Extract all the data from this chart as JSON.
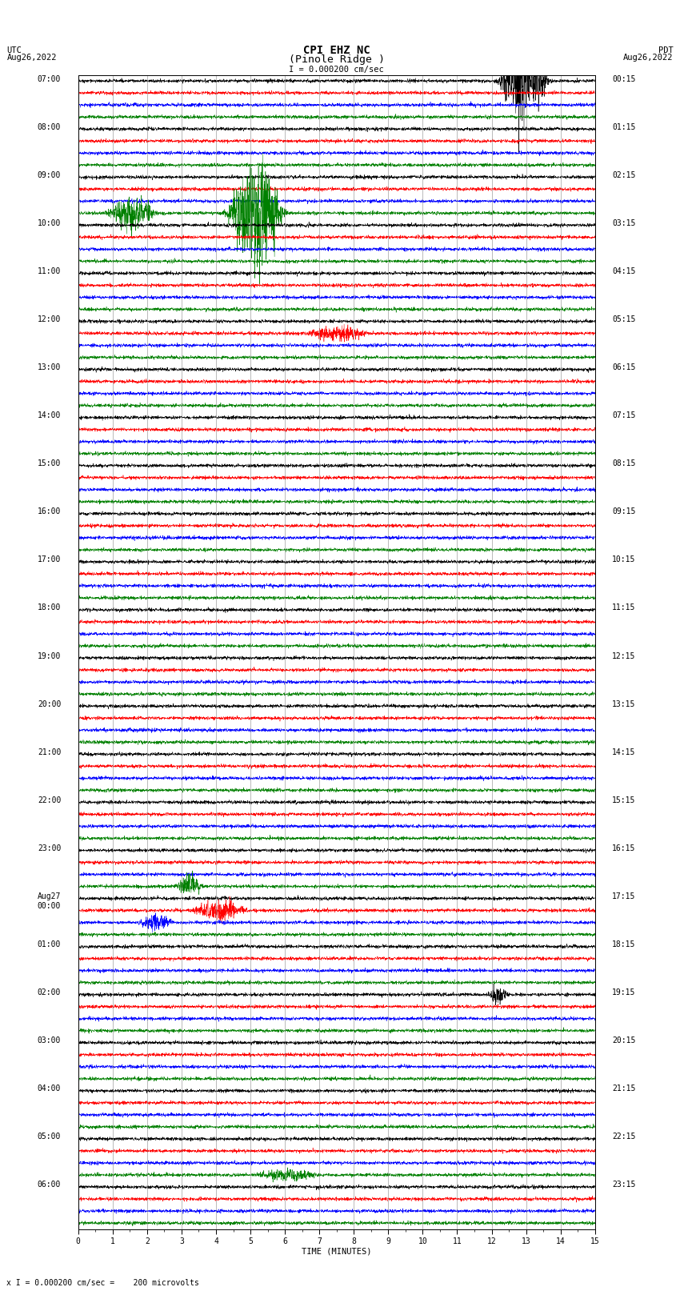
{
  "title_line1": "CPI EHZ NC",
  "title_line2": "(Pinole Ridge )",
  "scale_label": "I = 0.000200 cm/sec",
  "bottom_label": "x I = 0.000200 cm/sec =    200 microvolts",
  "xlabel": "TIME (MINUTES)",
  "left_date_line1": "UTC",
  "left_date_line2": "Aug26,2022",
  "right_date_line1": "PDT",
  "right_date_line2": "Aug26,2022",
  "left_times": [
    "07:00",
    "08:00",
    "09:00",
    "10:00",
    "11:00",
    "12:00",
    "13:00",
    "14:00",
    "15:00",
    "16:00",
    "17:00",
    "18:00",
    "19:00",
    "20:00",
    "21:00",
    "22:00",
    "23:00",
    "Aug27\n00:00",
    "01:00",
    "02:00",
    "03:00",
    "04:00",
    "05:00",
    "06:00"
  ],
  "right_times": [
    "00:15",
    "01:15",
    "02:15",
    "03:15",
    "04:15",
    "05:15",
    "06:15",
    "07:15",
    "08:15",
    "09:15",
    "10:15",
    "11:15",
    "12:15",
    "13:15",
    "14:15",
    "15:15",
    "16:15",
    "17:15",
    "18:15",
    "19:15",
    "20:15",
    "21:15",
    "22:15",
    "23:15"
  ],
  "n_time_blocks": 24,
  "traces_per_block": 4,
  "trace_colors": [
    "black",
    "red",
    "blue",
    "green"
  ],
  "bg_color": "white",
  "grid_color": "#888888",
  "minutes": 15,
  "base_amp": 0.12,
  "noise_seed": 42,
  "fig_width": 8.5,
  "fig_height": 16.13,
  "title_fontsize": 10,
  "label_fontsize": 7.5,
  "tick_fontsize": 7,
  "dpi": 100
}
